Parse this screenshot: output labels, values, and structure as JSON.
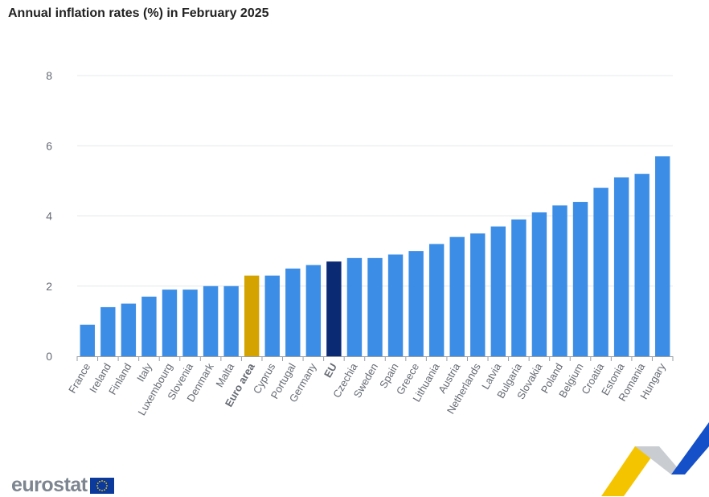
{
  "chart_data": {
    "type": "bar",
    "title": "Annual inflation rates (%) in February 2025",
    "categories": [
      "France",
      "Ireland",
      "Finland",
      "Italy",
      "Luxembourg",
      "Slovenia",
      "Denmark",
      "Malta",
      "Euro area",
      "Cyprus",
      "Portugal",
      "Germany",
      "EU",
      "Czechia",
      "Sweden",
      "Spain",
      "Greece",
      "Lithuania",
      "Austria",
      "Netherlands",
      "Latvia",
      "Bulgaria",
      "Slovakia",
      "Poland",
      "Belgium",
      "Croatia",
      "Estonia",
      "Romania",
      "Hungary"
    ],
    "values": [
      0.9,
      1.4,
      1.5,
      1.7,
      1.9,
      1.9,
      2.0,
      2.0,
      2.3,
      2.3,
      2.5,
      2.6,
      2.7,
      2.8,
      2.8,
      2.9,
      3.0,
      3.2,
      3.4,
      3.5,
      3.7,
      3.9,
      4.1,
      4.3,
      4.4,
      4.8,
      5.1,
      5.2,
      5.7
    ],
    "highlight": {
      "Euro area": "#d4a300",
      "EU": "#0b2a74"
    },
    "bold_categories": [
      "Euro area",
      "EU"
    ],
    "bar_color": "#3b8de6",
    "xlabel": "",
    "ylabel": "",
    "ylim": [
      0,
      8
    ],
    "yticks": [
      0,
      2,
      4,
      6,
      8
    ],
    "grid": true
  },
  "brand": {
    "logo_text": "eurostat"
  }
}
